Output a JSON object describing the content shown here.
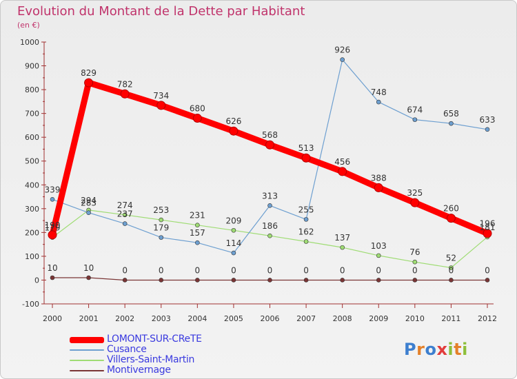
{
  "header": {
    "title": "Evolution du Montant de la Dette par Habitant",
    "subtitle": "(en €)"
  },
  "logo": {
    "text": "Proxiti"
  },
  "chart_data": {
    "type": "line",
    "x": [
      "2000",
      "2001",
      "2002",
      "2003",
      "2004",
      "2005",
      "2006",
      "2007",
      "2008",
      "2009",
      "2010",
      "2011",
      "2012"
    ],
    "ylim": [
      -100,
      1000
    ],
    "yticks": [
      -100,
      0,
      100,
      200,
      300,
      400,
      500,
      600,
      700,
      800,
      900,
      1000
    ],
    "grid": false,
    "legend_position": "bottom-left",
    "series": [
      {
        "name": "LOMONT-SUR-CReTE",
        "color": "#ff0000",
        "emphasis": true,
        "values": [
          190,
          829,
          782,
          734,
          680,
          626,
          568,
          513,
          456,
          388,
          325,
          260,
          196
        ]
      },
      {
        "name": "Cusance",
        "color": "#6d9fd0",
        "values": [
          339,
          283,
          237,
          179,
          157,
          114,
          313,
          255,
          926,
          748,
          674,
          658,
          633
        ]
      },
      {
        "name": "Villers-Saint-Martin",
        "color": "#9fdc74",
        "values": [
          179,
          294,
          274,
          253,
          231,
          209,
          186,
          162,
          137,
          103,
          76,
          52,
          181
        ]
      },
      {
        "name": "Montivernage",
        "color": "#7a3535",
        "values": [
          10,
          10,
          0,
          0,
          0,
          0,
          0,
          0,
          0,
          0,
          0,
          0,
          0
        ]
      }
    ]
  }
}
